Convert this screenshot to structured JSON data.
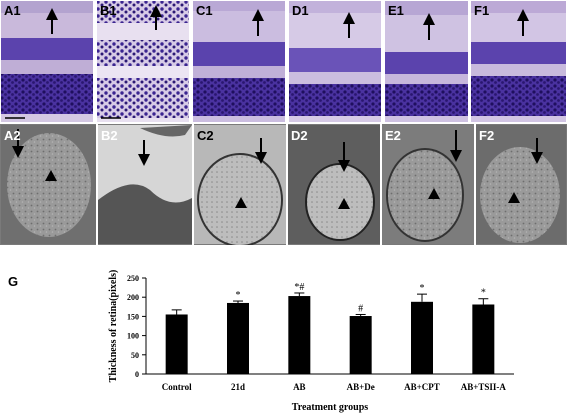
{
  "figure": {
    "top_row_labels": [
      "A1",
      "B1",
      "C1",
      "D1",
      "E1",
      "F1"
    ],
    "bottom_row_labels": [
      "A2",
      "B2",
      "C2",
      "D2",
      "E2",
      "F2"
    ],
    "chart_label": "G"
  },
  "colors": {
    "stain_background": "#c7b6d8",
    "nuclei": "#2d1a78",
    "em_background": "#8c8c8c",
    "bar": "#000000"
  },
  "chart_data": {
    "type": "bar",
    "categories": [
      "Control",
      "21d",
      "AB",
      "AB+De",
      "AB+CPT",
      "AB+TSII-A"
    ],
    "values": [
      155,
      185,
      203,
      151,
      188,
      181
    ],
    "errors": [
      12,
      5,
      8,
      4,
      20,
      15
    ],
    "annotations": [
      "",
      "*",
      "*#",
      "#",
      "*",
      "*"
    ],
    "xlabel": "Treatment groups",
    "ylabel": "Thickness of retina(pixels)",
    "yticks": [
      0,
      50,
      100,
      150,
      200,
      250
    ],
    "ylim": [
      0,
      250
    ],
    "grid": false,
    "legend": "none"
  }
}
